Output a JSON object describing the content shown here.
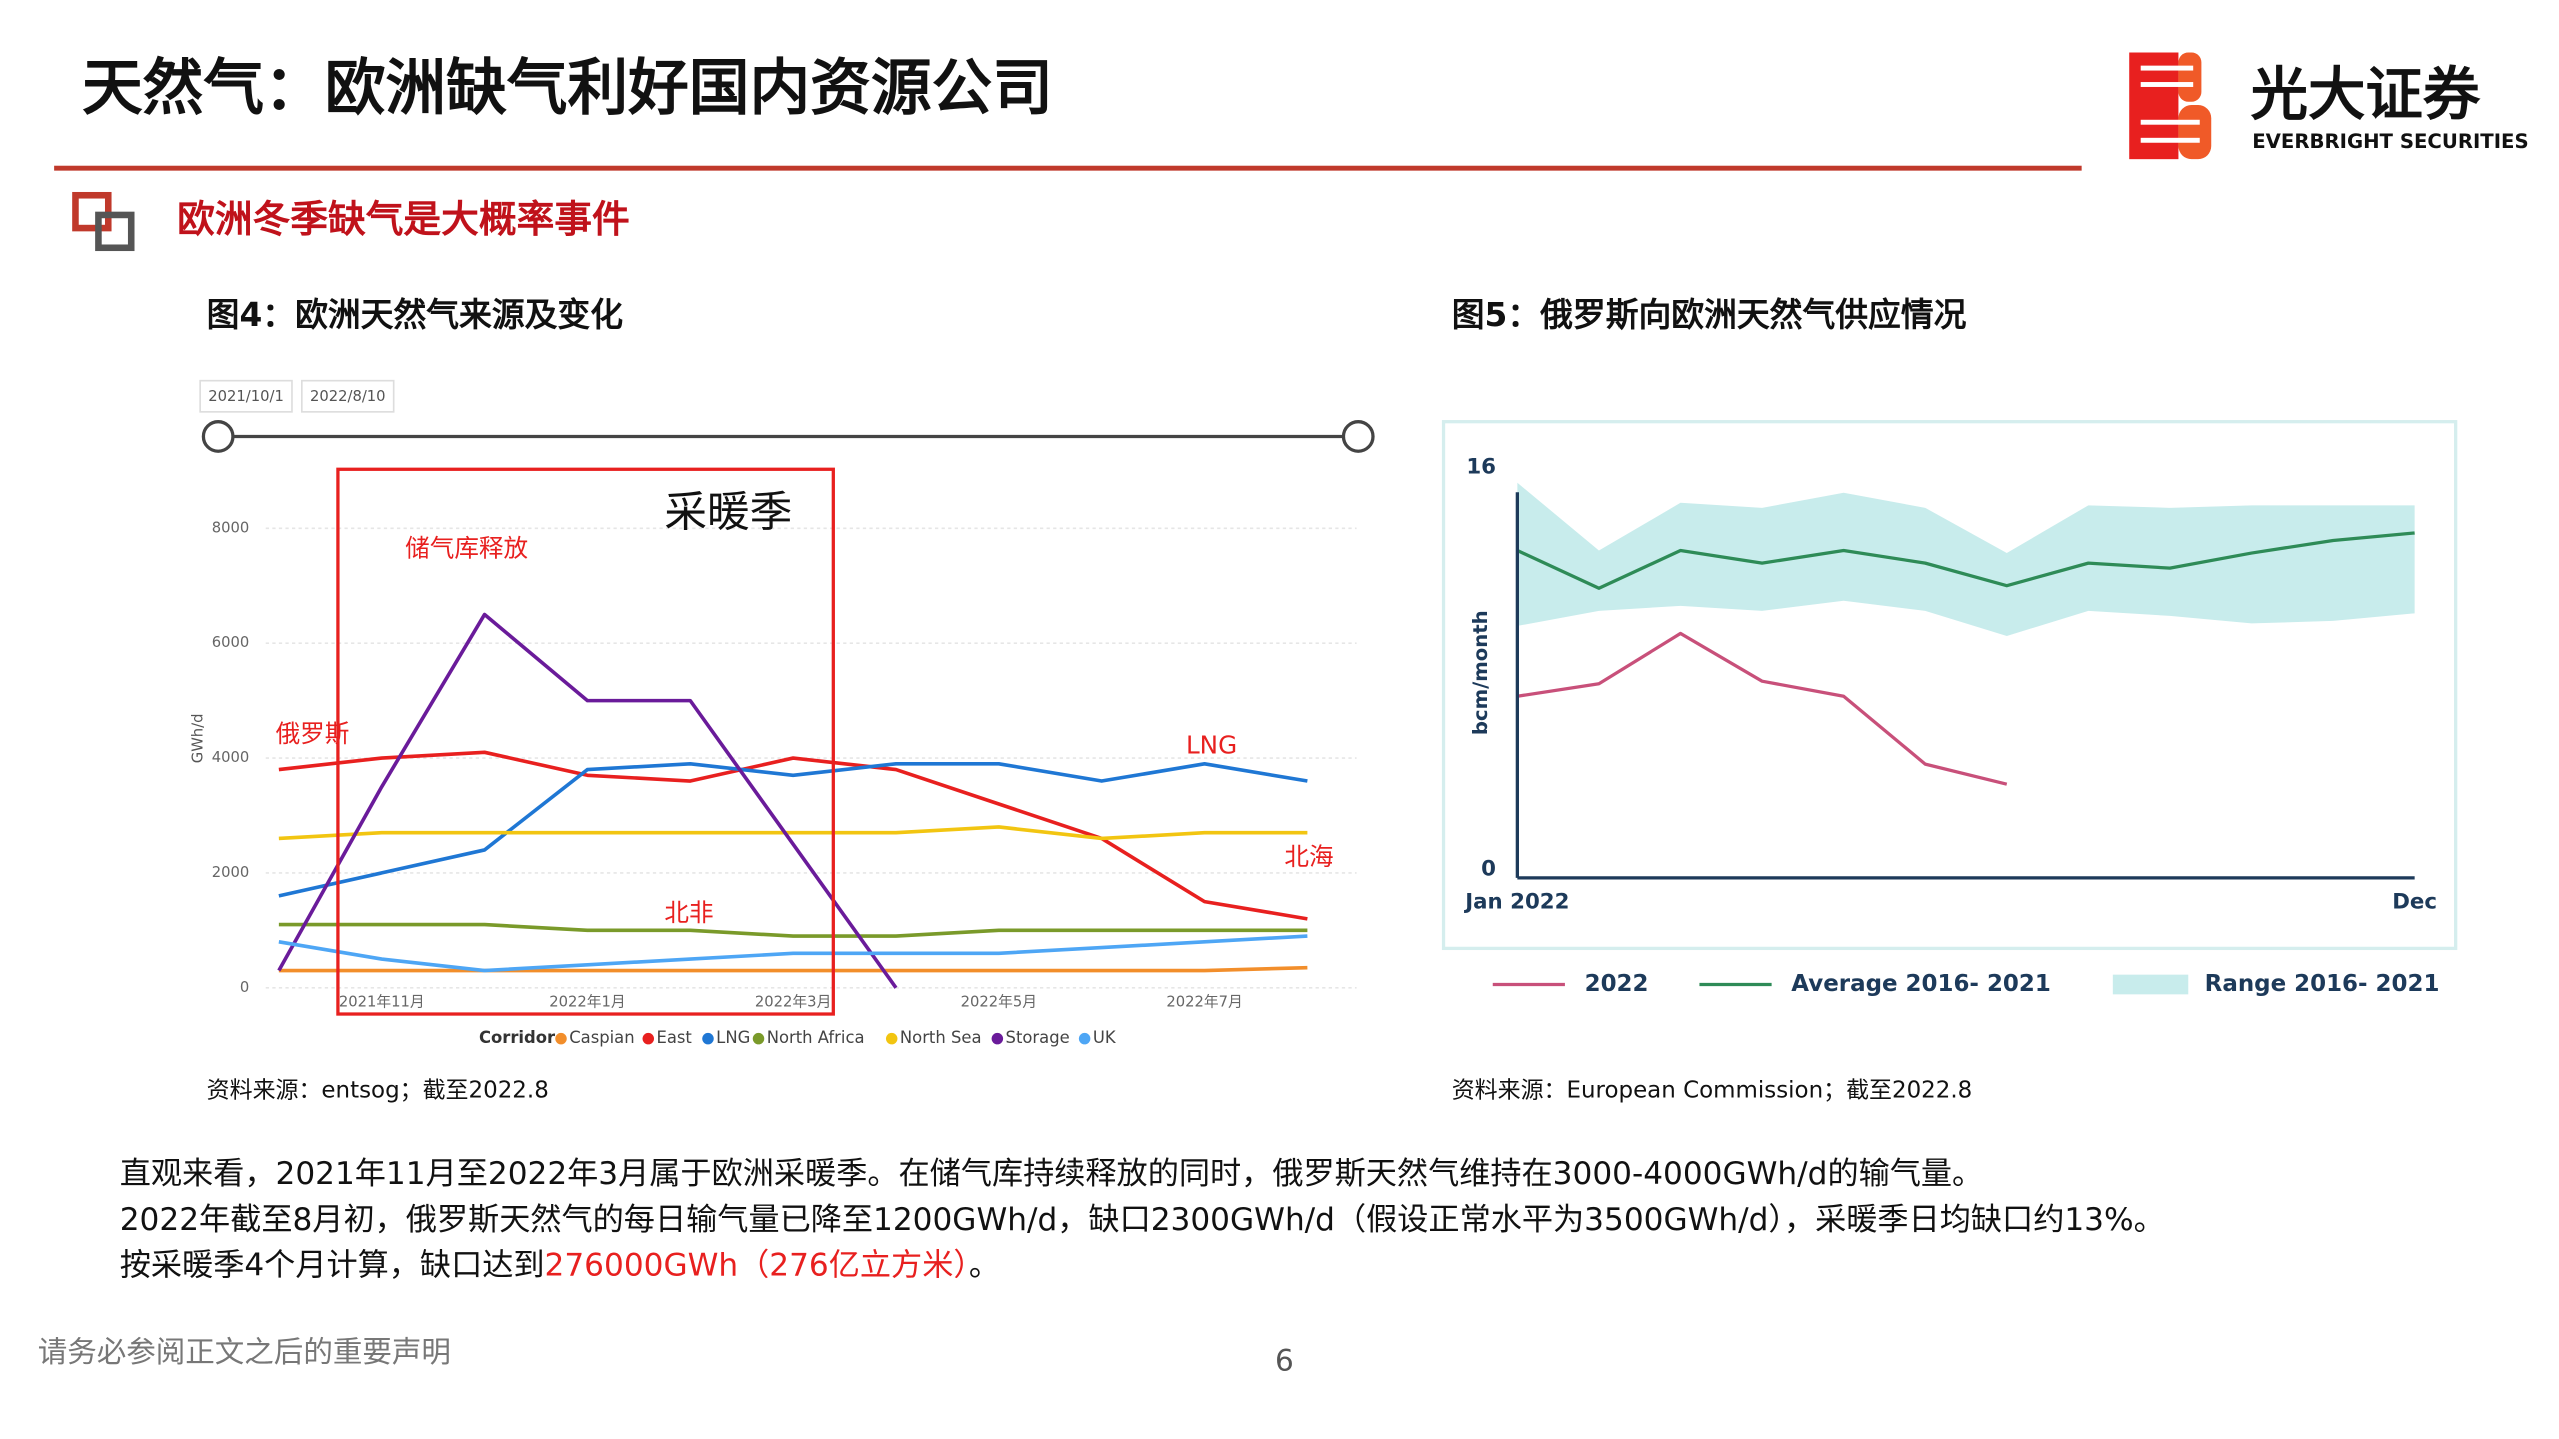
{
  "header": {
    "title": "天然气：欧洲缺气利好国内资源公司",
    "logo_cn": "光大证券",
    "logo_en": "EVERBRIGHT SECURITIES"
  },
  "section": "欧洲冬季缺气是大概率事件",
  "figures": [
    {
      "caption": "图4：欧洲天然气来源及变化",
      "source": "资料来源：entsog；截至2022.8"
    },
    {
      "caption": "图5：俄罗斯向欧洲天然气供应情况",
      "source": "资料来源：European Commission；截至2022.8"
    }
  ],
  "body": {
    "line1": "直观来看，2021年11月至2022年3月属于欧洲采暖季。在储气库持续释放的同时，俄罗斯天然气维持在3000-4000GWh/d的输气量。",
    "line2": "2022年截至8月初，俄罗斯天然气的每日输气量已降至1200GWh/d，缺口2300GWh/d（假设正常水平为3500GWh/d），采暖季日均缺口约13%。",
    "line3": [
      "按采暖季4个月计算，缺口达到",
      "276000GWh（276亿立方米）",
      "。"
    ]
  },
  "footer": {
    "disclaimer": "请务必参阅正文之后的重要声明",
    "page": 6
  },
  "chart_data": [
    {
      "type": "line",
      "date_range": [
        "2021/10/1",
        "2022/8/10"
      ],
      "ylabel": "GWh/d",
      "legend_title": "Corridor",
      "grid": true,
      "categories": [
        null,
        "2021年11月",
        null,
        "2022年1月",
        null,
        "2022年3月",
        null,
        "2022年5月",
        null,
        "2022年7月",
        null
      ],
      "ylim": [
        0,
        8000
      ],
      "yticks": [
        0,
        2000,
        4000,
        6000,
        8000
      ],
      "series": [
        {
          "name": "Caspian",
          "color": "#f28e2b",
          "values": [
            300,
            300,
            300,
            300,
            300,
            300,
            300,
            300,
            300,
            300,
            350
          ]
        },
        {
          "name": "East",
          "color": "#e8201f",
          "values": [
            3800,
            4000,
            4100,
            3700,
            3600,
            4000,
            3800,
            3200,
            2600,
            1500,
            1200
          ]
        },
        {
          "name": "LNG",
          "color": "#1f77d4",
          "values": [
            1600,
            2000,
            2400,
            3800,
            3900,
            3700,
            3900,
            3900,
            3600,
            3900,
            3600
          ]
        },
        {
          "name": "North Africa",
          "color": "#7a9a2a",
          "values": [
            1100,
            1100,
            1100,
            1000,
            1000,
            900,
            900,
            1000,
            1000,
            1000,
            1000
          ]
        },
        {
          "name": "North Sea",
          "color": "#f2c511",
          "values": [
            2600,
            2700,
            2700,
            2700,
            2700,
            2700,
            2700,
            2800,
            2600,
            2700,
            2700
          ]
        },
        {
          "name": "Storage",
          "color": "#6a1b9a",
          "values": [
            300,
            3500,
            6500,
            5000,
            5000,
            2500,
            0,
            null,
            null,
            null,
            null
          ]
        },
        {
          "name": "UK",
          "color": "#4ea6f5",
          "values": [
            800,
            500,
            300,
            400,
            500,
            600,
            600,
            600,
            700,
            800,
            900
          ]
        }
      ],
      "annotations": [
        "储气库释放",
        "俄罗斯",
        "LNG",
        "北海",
        "北非",
        "采暖季"
      ]
    },
    {
      "type": "line",
      "ylabel": "bcm/month",
      "categories": [
        "Jan 2022",
        null,
        null,
        null,
        null,
        null,
        null,
        null,
        null,
        null,
        null,
        "Dec"
      ],
      "ylim": [
        0,
        16
      ],
      "yticks": [
        0,
        16
      ],
      "series": [
        {
          "name": "2022",
          "color": "#c8507a",
          "values": [
            6.9,
            7.4,
            9.4,
            7.5,
            6.9,
            4.2,
            3.4,
            null,
            null,
            null,
            null,
            null
          ]
        },
        {
          "name": "Average 2016- 2021",
          "color": "#2e8b57",
          "values": [
            12.7,
            11.2,
            12.7,
            12.2,
            12.7,
            12.2,
            11.3,
            12.2,
            12.0,
            12.6,
            13.1,
            13.4
          ]
        },
        {
          "name": "Range 2016- 2021",
          "color": "#c8ecec",
          "type": "band",
          "low": [
            9.7,
            10.3,
            10.5,
            10.3,
            10.7,
            10.3,
            9.3,
            10.3,
            10.1,
            9.8,
            9.9,
            10.2
          ],
          "high": [
            15.4,
            12.7,
            14.6,
            14.4,
            15.0,
            14.4,
            12.6,
            14.5,
            14.4,
            14.5,
            14.5,
            14.5
          ]
        }
      ]
    }
  ]
}
